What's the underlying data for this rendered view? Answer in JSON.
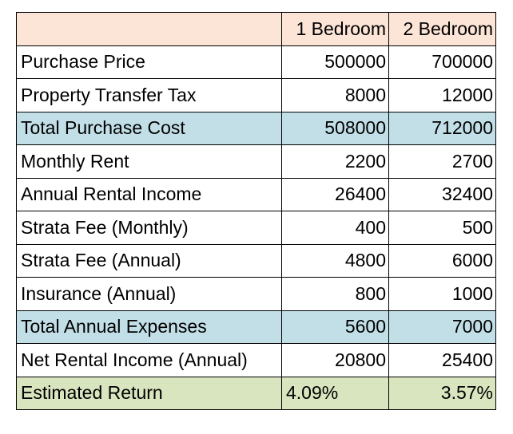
{
  "table": {
    "columns": [
      "1 Bedroom",
      "2 Bedroom"
    ],
    "rows": [
      [
        "Purchase Price",
        500000,
        700000
      ],
      [
        "Property Transfer Tax",
        8000,
        12000
      ],
      [
        "Total Purchase Cost",
        508000,
        712000
      ],
      [
        "Monthly Rent",
        2200,
        2700
      ],
      [
        "Annual Rental Income",
        26400,
        32400
      ],
      [
        "Strata Fee (Monthly)",
        400,
        500
      ],
      [
        "Strata Fee (Annual)",
        4800,
        6000
      ],
      [
        "Insurance (Annual)",
        800,
        1000
      ],
      [
        "Total Annual Expenses",
        5600,
        7000
      ],
      [
        "Net Rental Income (Annual)",
        20800,
        25400
      ],
      [
        "Estimated Return",
        "4.09%",
        "3.57%"
      ]
    ]
  }
}
